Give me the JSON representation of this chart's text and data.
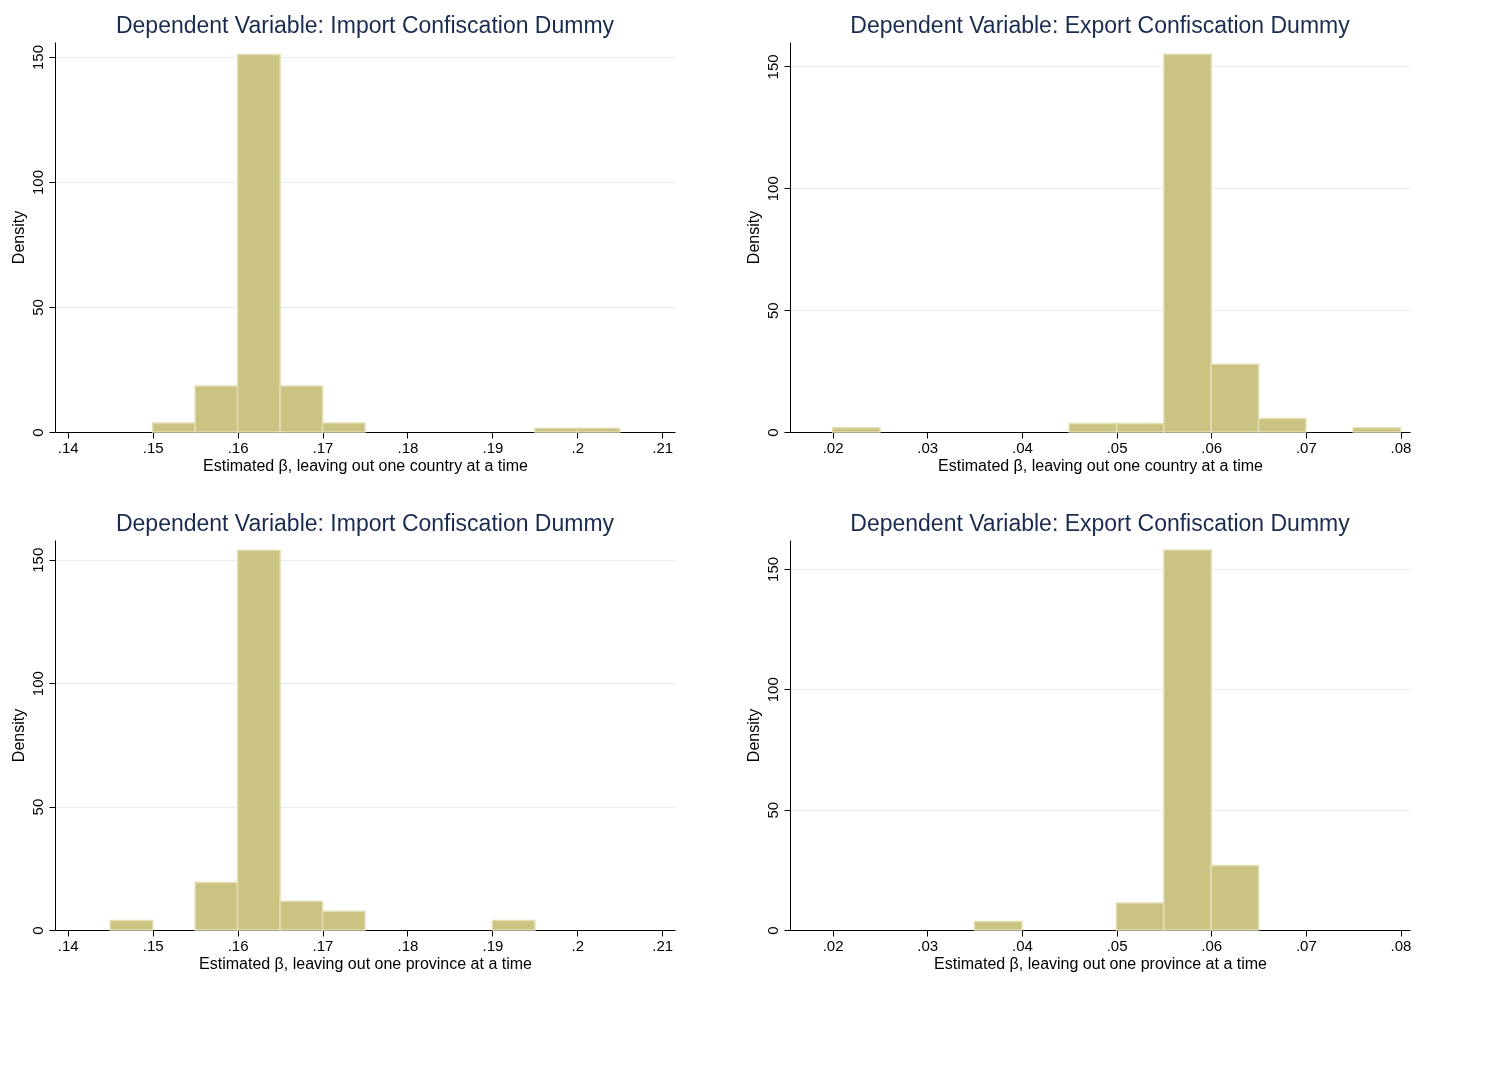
{
  "chart_data": [
    {
      "type": "histogram",
      "title": "Dependent Variable: Import Confiscation Dummy",
      "xlabel": "Estimated β, leaving out one country at a time",
      "ylabel": "Density",
      "color": "#cbc382",
      "grid": "y",
      "bins": [
        0.15,
        0.155,
        0.16,
        0.165,
        0.17,
        0.175,
        0.18,
        0.185,
        0.19,
        0.195,
        0.2,
        0.205
      ],
      "values": [
        3.6,
        18.4,
        151,
        18.4,
        3.6,
        0,
        0,
        0,
        0,
        1.5,
        1.5
      ],
      "xlim": [
        0.1385,
        0.2115
      ],
      "ylim": [
        0,
        156
      ],
      "xticks": [
        {
          "value": 0.14,
          "label": ".14"
        },
        {
          "value": 0.15,
          "label": ".15"
        },
        {
          "value": 0.16,
          "label": ".16"
        },
        {
          "value": 0.17,
          "label": ".17"
        },
        {
          "value": 0.18,
          "label": ".18"
        },
        {
          "value": 0.19,
          "label": ".19"
        },
        {
          "value": 0.2,
          "label": ".2"
        },
        {
          "value": 0.21,
          "label": ".21"
        }
      ],
      "yticks": [
        0,
        50,
        100,
        150
      ]
    },
    {
      "type": "histogram",
      "title": "Dependent Variable: Export Confiscation Dummy",
      "xlabel": "Estimated β, leaving out one country at a time",
      "ylabel": "Density",
      "color": "#cbc382",
      "grid": "y",
      "bins": [
        0.02,
        0.025,
        0.03,
        0.035,
        0.04,
        0.045,
        0.05,
        0.055,
        0.06,
        0.065,
        0.07,
        0.075,
        0.08
      ],
      "values": [
        1.7,
        0,
        0,
        0,
        0,
        3.5,
        3.5,
        155,
        27.8,
        5.5,
        0,
        1.7
      ],
      "xlim": [
        0.0155,
        0.081
      ],
      "ylim": [
        0,
        160
      ],
      "xticks": [
        {
          "value": 0.02,
          "label": ".02"
        },
        {
          "value": 0.03,
          "label": ".03"
        },
        {
          "value": 0.04,
          "label": ".04"
        },
        {
          "value": 0.05,
          "label": ".05"
        },
        {
          "value": 0.06,
          "label": ".06"
        },
        {
          "value": 0.07,
          "label": ".07"
        },
        {
          "value": 0.08,
          "label": ".08"
        }
      ],
      "yticks": [
        0,
        50,
        100,
        150
      ]
    },
    {
      "type": "histogram",
      "title": "Dependent Variable: Import Confiscation Dummy",
      "xlabel": "Estimated β, leaving out one province at a time",
      "ylabel": "Density",
      "color": "#cbc382",
      "grid": "y",
      "bins": [
        0.145,
        0.15,
        0.155,
        0.16,
        0.165,
        0.17,
        0.175,
        0.18,
        0.185,
        0.19,
        0.195
      ],
      "values": [
        3.8,
        0,
        19.2,
        153.8,
        11.6,
        7.6,
        0,
        0,
        0,
        3.8
      ],
      "xlim": [
        0.1385,
        0.2115
      ],
      "ylim": [
        0,
        158
      ],
      "xticks": [
        {
          "value": 0.14,
          "label": ".14"
        },
        {
          "value": 0.15,
          "label": ".15"
        },
        {
          "value": 0.16,
          "label": ".16"
        },
        {
          "value": 0.17,
          "label": ".17"
        },
        {
          "value": 0.18,
          "label": ".18"
        },
        {
          "value": 0.19,
          "label": ".19"
        },
        {
          "value": 0.2,
          "label": ".2"
        },
        {
          "value": 0.21,
          "label": ".21"
        }
      ],
      "yticks": [
        0,
        50,
        100,
        150
      ]
    },
    {
      "type": "histogram",
      "title": "Dependent Variable: Export Confiscation Dummy",
      "xlabel": "Estimated β, leaving out one province at a time",
      "ylabel": "Density",
      "color": "#cbc382",
      "grid": "y",
      "bins": [
        0.035,
        0.04,
        0.045,
        0.05,
        0.055,
        0.06,
        0.065
      ],
      "values": [
        3.5,
        0,
        0,
        11.2,
        157.8,
        26.8
      ],
      "xlim": [
        0.0155,
        0.081
      ],
      "ylim": [
        0,
        162
      ],
      "xticks": [
        {
          "value": 0.02,
          "label": ".02"
        },
        {
          "value": 0.03,
          "label": ".03"
        },
        {
          "value": 0.04,
          "label": ".04"
        },
        {
          "value": 0.05,
          "label": ".05"
        },
        {
          "value": 0.06,
          "label": ".06"
        },
        {
          "value": 0.07,
          "label": ".07"
        },
        {
          "value": 0.08,
          "label": ".08"
        }
      ],
      "yticks": [
        0,
        50,
        100,
        150
      ]
    }
  ]
}
